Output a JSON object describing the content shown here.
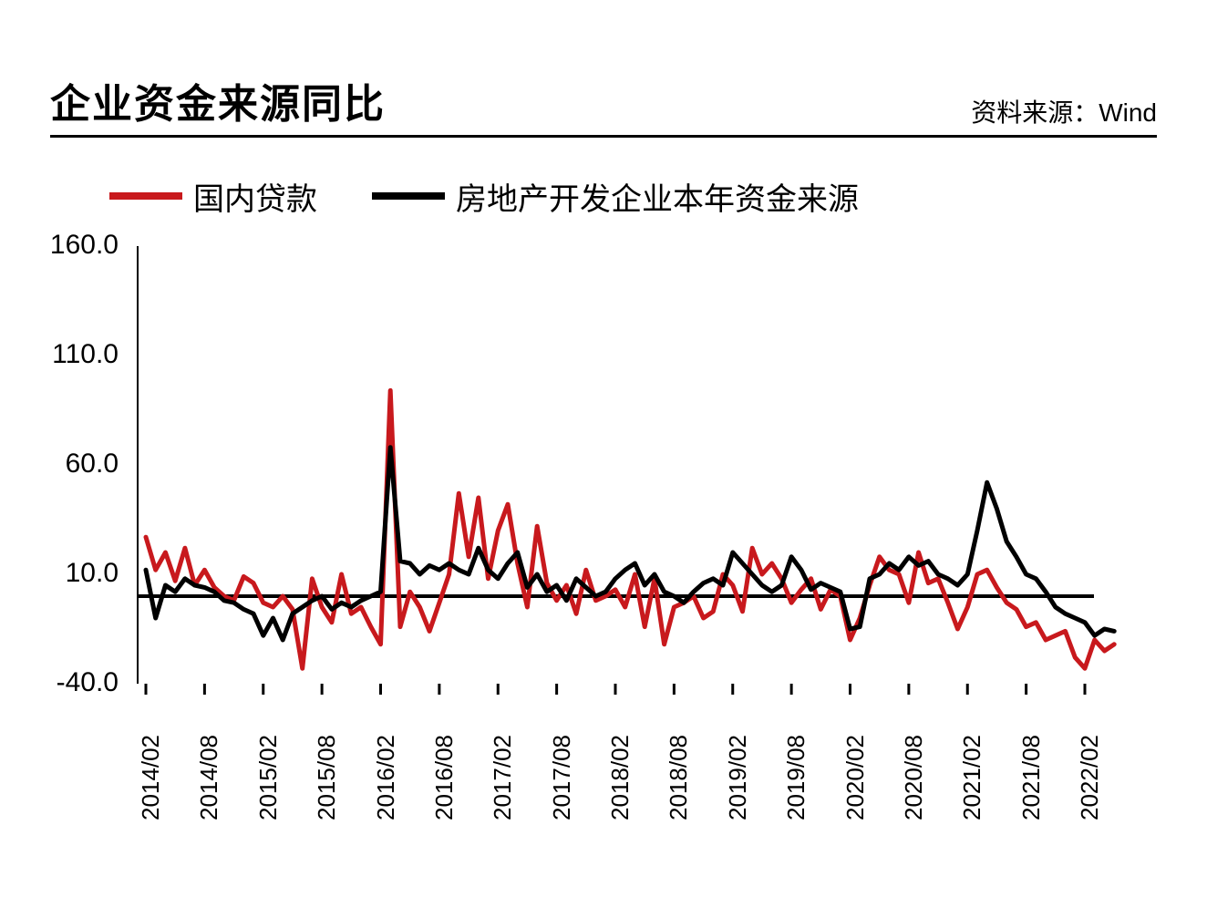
{
  "title": "企业资金来源同比",
  "source_label": "资料来源：Wind",
  "chart": {
    "type": "line",
    "background_color": "#ffffff",
    "axis_color": "#000000",
    "axis_width": 4,
    "title_fontsize": 44,
    "label_fontsize": 30,
    "xtick_fontsize": 26,
    "ylim": [
      -40,
      160
    ],
    "ytick_step": 50,
    "y_ticks": [
      "160.0",
      "110.0",
      "60.0",
      "10.0",
      "-40.0"
    ],
    "x_labels": [
      "2014/02",
      "2014/08",
      "2015/02",
      "2015/08",
      "2016/02",
      "2016/08",
      "2017/02",
      "2017/08",
      "2018/02",
      "2018/08",
      "2019/02",
      "2019/08",
      "2020/02",
      "2020/08",
      "2021/02",
      "2021/08",
      "2022/02"
    ],
    "n_x_major": 17,
    "points_per_major": 6,
    "legend": {
      "items": [
        {
          "label": "国内贷款",
          "color": "#c8191d"
        },
        {
          "label": "房地产开发企业本年资金来源",
          "color": "#000000"
        }
      ],
      "line_width": 8
    },
    "series": [
      {
        "name": "国内贷款",
        "color": "#c8191d",
        "line_width": 5,
        "values": [
          27,
          12,
          20,
          7,
          22,
          5,
          12,
          4,
          0,
          -2,
          9,
          6,
          -3,
          -5,
          0,
          -6,
          -33,
          8,
          -5,
          -12,
          10,
          -8,
          -5,
          -14,
          -22,
          94,
          -14,
          2,
          -5,
          -16,
          -3,
          10,
          47,
          18,
          45,
          8,
          30,
          42,
          15,
          -5,
          32,
          6,
          -2,
          5,
          -8,
          12,
          -2,
          0,
          3,
          -5,
          10,
          -14,
          8,
          -22,
          -5,
          -3,
          0,
          -10,
          -7,
          10,
          5,
          -7,
          22,
          10,
          15,
          8,
          -3,
          3,
          8,
          -6,
          3,
          0,
          -20,
          -10,
          5,
          18,
          12,
          10,
          -3,
          20,
          6,
          8,
          -3,
          -15,
          -5,
          10,
          12,
          4,
          -3,
          -6,
          -14,
          -12,
          -20,
          -18,
          -16,
          -28,
          -33,
          -20,
          -25,
          -22
        ]
      },
      {
        "name": "房地产开发企业本年资金来源",
        "color": "#000000",
        "line_width": 5,
        "values": [
          12,
          -10,
          5,
          2,
          8,
          5,
          4,
          2,
          -2,
          -3,
          -6,
          -8,
          -18,
          -10,
          -20,
          -8,
          -5,
          -2,
          0,
          -6,
          -3,
          -5,
          -2,
          0,
          2,
          68,
          16,
          15,
          10,
          14,
          12,
          15,
          12,
          10,
          22,
          12,
          8,
          15,
          20,
          4,
          10,
          2,
          5,
          -2,
          8,
          4,
          0,
          2,
          8,
          12,
          15,
          5,
          10,
          2,
          0,
          -3,
          2,
          6,
          8,
          5,
          20,
          15,
          10,
          5,
          2,
          5,
          18,
          12,
          3,
          6,
          4,
          2,
          -15,
          -14,
          8,
          10,
          15,
          12,
          18,
          14,
          16,
          10,
          8,
          5,
          10,
          30,
          52,
          40,
          25,
          18,
          10,
          8,
          2,
          -5,
          -8,
          -10,
          -12,
          -18,
          -15,
          -16
        ]
      }
    ]
  }
}
